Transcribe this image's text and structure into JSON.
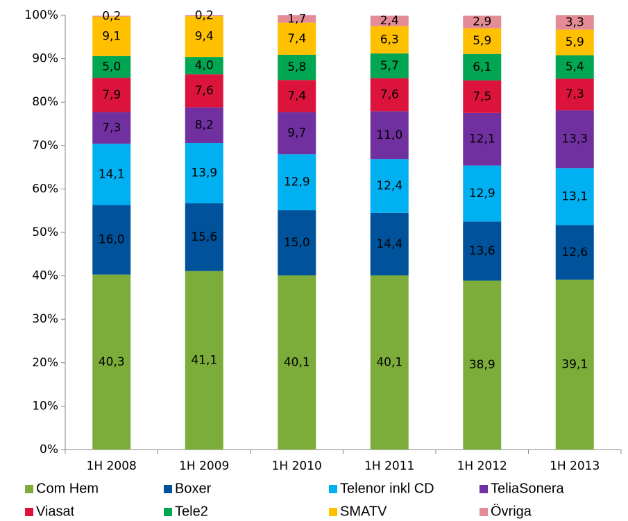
{
  "chart_data": {
    "type": "stacked_bar",
    "categories": [
      "1H 2008",
      "1H 2009",
      "1H 2010",
      "1H 2011",
      "1H 2012",
      "1H 2013"
    ],
    "series": [
      {
        "name": "Com Hem",
        "color": "#7cad3a",
        "label_color": "#000000",
        "values": [
          40.3,
          41.1,
          40.1,
          40.1,
          38.9,
          39.1
        ],
        "value_labels": [
          "40,3",
          "41,1",
          "40,1",
          "40,1",
          "38,9",
          "39,1"
        ]
      },
      {
        "name": "Boxer",
        "color": "#00529b",
        "label_color": "#ffffff",
        "values": [
          16.0,
          15.6,
          15.0,
          14.4,
          13.6,
          12.6
        ],
        "value_labels": [
          "16,0",
          "15,6",
          "15,0",
          "14,4",
          "13,6",
          "12,6"
        ]
      },
      {
        "name": "Telenor inkl CD",
        "color": "#00b0f0",
        "label_color": "#ffffff",
        "values": [
          14.1,
          13.9,
          12.9,
          12.4,
          12.9,
          13.1
        ],
        "value_labels": [
          "14,1",
          "13,9",
          "12,9",
          "12,4",
          "12,9",
          "13,1"
        ]
      },
      {
        "name": "TeliaSonera",
        "color": "#7030a0",
        "label_color": "#ffffff",
        "values": [
          7.3,
          8.2,
          9.7,
          11.0,
          12.1,
          13.3
        ],
        "value_labels": [
          "7,3",
          "8,2",
          "9,7",
          "11,0",
          "12,1",
          "13,3"
        ]
      },
      {
        "name": "Viasat",
        "color": "#dc143c",
        "label_color": "#000000",
        "values": [
          7.9,
          7.6,
          7.4,
          7.6,
          7.5,
          7.3
        ],
        "value_labels": [
          "7,9",
          "7,6",
          "7,4",
          "7,6",
          "7,5",
          "7,3"
        ]
      },
      {
        "name": "Tele2",
        "color": "#00a651",
        "label_color": "#000000",
        "values": [
          5.0,
          4.0,
          5.8,
          5.7,
          6.1,
          5.4
        ],
        "value_labels": [
          "5,0",
          "4,0",
          "5,8",
          "5,7",
          "6,1",
          "5,4"
        ]
      },
      {
        "name": "SMATV",
        "color": "#ffc000",
        "label_color": "#000000",
        "values": [
          9.1,
          9.4,
          7.4,
          6.3,
          5.9,
          5.9
        ],
        "value_labels": [
          "9,1",
          "9,4",
          "7,4",
          "6,3",
          "5,9",
          "5,9"
        ]
      },
      {
        "name": "Övriga",
        "color": "#e38c95",
        "label_color": "#000000",
        "values": [
          0.2,
          0.2,
          1.7,
          2.4,
          2.9,
          3.3
        ],
        "value_labels": [
          "0,2",
          "0,2",
          "1,7",
          "2,4",
          "2,9",
          "3,3"
        ]
      }
    ],
    "ylim": [
      0,
      100
    ],
    "yticks": [
      {
        "value": 0,
        "label": "0%"
      },
      {
        "value": 10,
        "label": "10%"
      },
      {
        "value": 20,
        "label": "20%"
      },
      {
        "value": 30,
        "label": "30%"
      },
      {
        "value": 40,
        "label": "40%"
      },
      {
        "value": 50,
        "label": "50%"
      },
      {
        "value": 60,
        "label": "60%"
      },
      {
        "value": 70,
        "label": "70%"
      },
      {
        "value": 80,
        "label": "80%"
      },
      {
        "value": 90,
        "label": "90%"
      },
      {
        "value": 100,
        "label": "100%"
      }
    ],
    "grid": false
  }
}
